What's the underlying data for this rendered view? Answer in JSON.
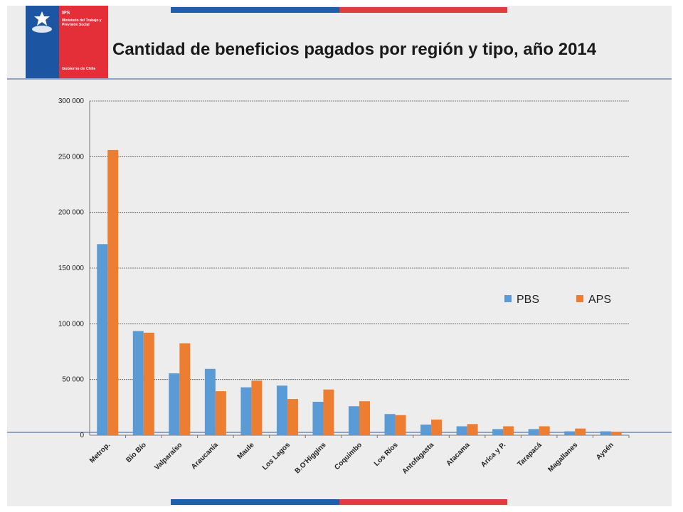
{
  "header": {
    "title": "Cantidad de beneficios pagados por región y tipo, año 2014",
    "logo": {
      "brand": "IPS",
      "ministry": "Ministerio del Trabajo y Previsión Social",
      "government": "Gobierno de Chile"
    }
  },
  "colors": {
    "brand_blue": "#1d5fab",
    "brand_red": "#e03b3f",
    "pbs": "#5b9bd5",
    "aps": "#ed7d31"
  },
  "chart_data": {
    "type": "bar",
    "title": "",
    "xlabel": "",
    "ylabel": "",
    "ylim": [
      0,
      300000
    ],
    "yticks": [
      0,
      50000,
      100000,
      150000,
      200000,
      250000,
      300000
    ],
    "ytick_labels": [
      "0",
      "50 000",
      "100 000",
      "150 000",
      "200 000",
      "250 000",
      "300 000"
    ],
    "grid": true,
    "legend_position": "right-middle",
    "categories": [
      "Metrop.",
      "Bío Bío",
      "Valparaíso",
      "Araucanía",
      "Maule",
      "Los Lagos",
      "B.O'Higgins",
      "Coquimbo",
      "Los Ríos",
      "Antofagasta",
      "Atacama",
      "Arica y P.",
      "Tarapacá",
      "Magallanes",
      "Aysén"
    ],
    "series": [
      {
        "name": "PBS",
        "values": [
          171500,
          93500,
          55500,
          59500,
          43000,
          44500,
          30000,
          26000,
          19000,
          9500,
          8000,
          5500,
          5500,
          3500,
          3500
        ]
      },
      {
        "name": "APS",
        "values": [
          256000,
          92000,
          82500,
          39500,
          49000,
          32500,
          41000,
          30500,
          18000,
          14000,
          10000,
          8000,
          8000,
          6000,
          3000
        ]
      }
    ]
  }
}
